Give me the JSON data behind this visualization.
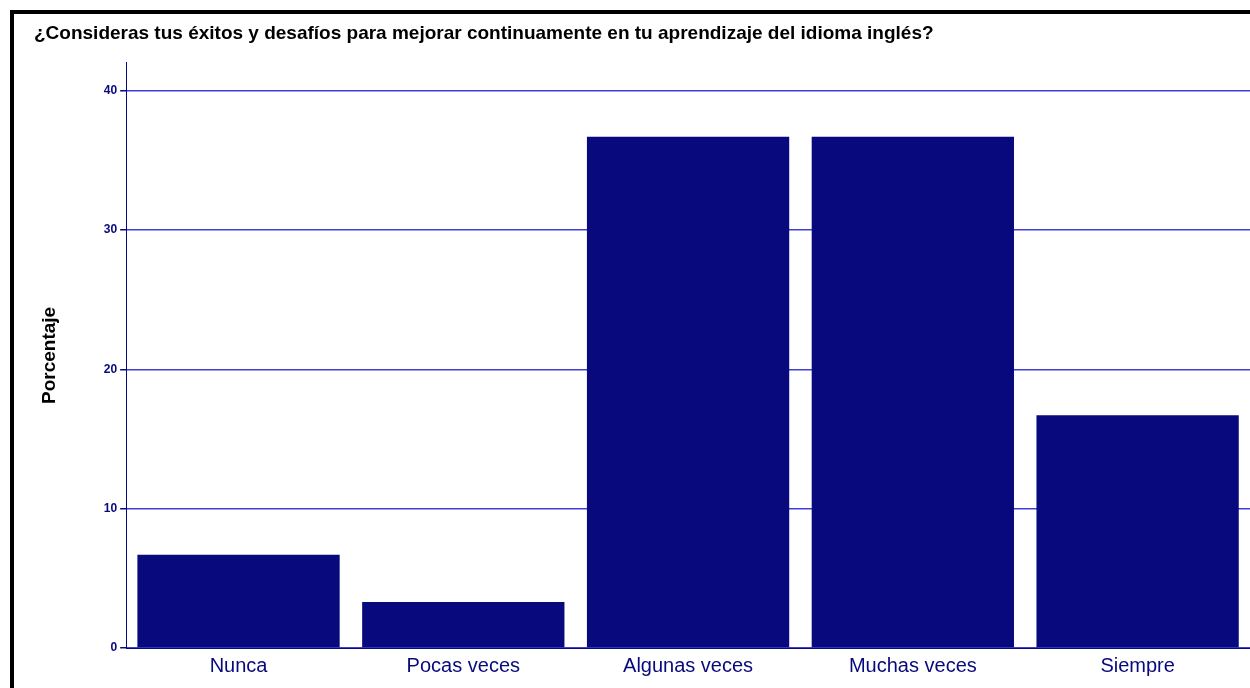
{
  "chart_data": {
    "type": "bar",
    "title": "¿Consideras tus éxitos y desafíos para mejorar continuamente en tu aprendizaje del idioma inglés?",
    "ylabel": "Porcentaje",
    "categories": [
      "Nunca",
      "Pocas veces",
      "Algunas veces",
      "Muchas veces",
      "Siempre"
    ],
    "values": [
      6.7,
      3.3,
      36.7,
      36.7,
      16.7
    ],
    "color": "#09097e",
    "ylim": [
      0,
      42
    ],
    "yticks": [
      0,
      10,
      20,
      30,
      40
    ],
    "grid": "y",
    "legend": false
  }
}
